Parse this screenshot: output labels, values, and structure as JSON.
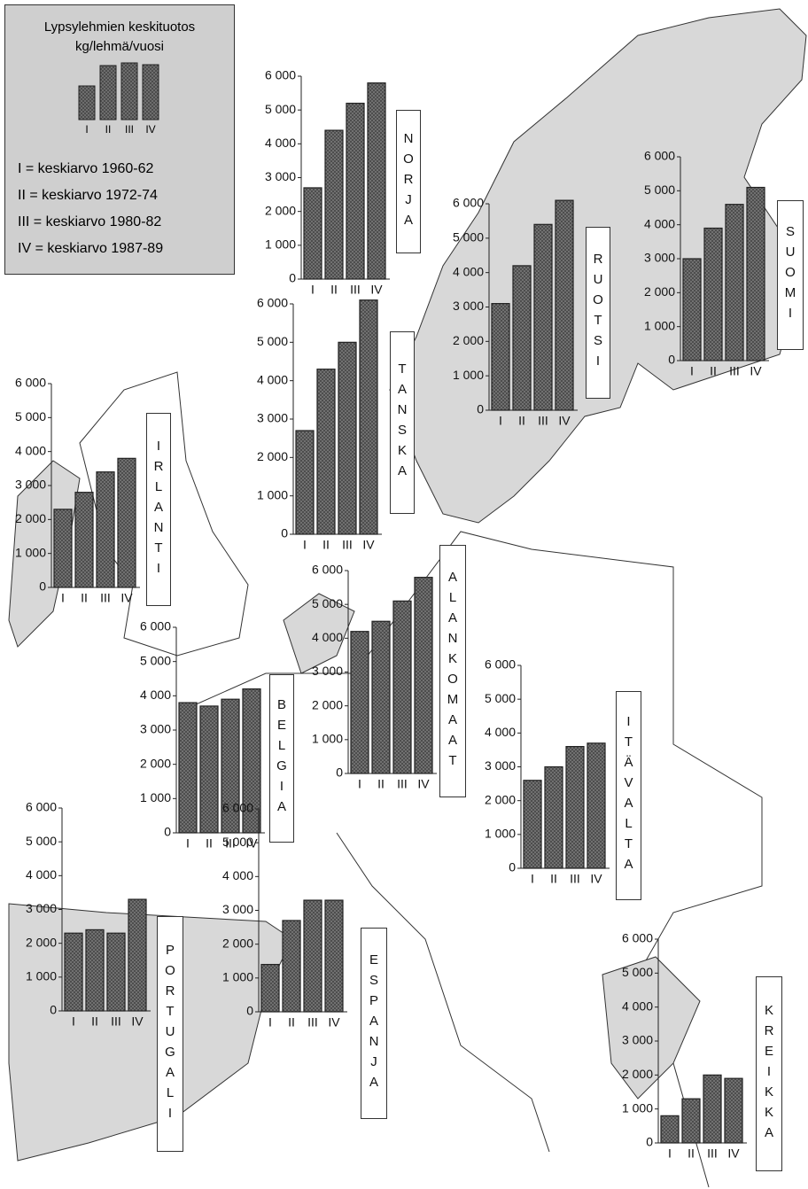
{
  "legend": {
    "title": "Lypsylehmien keskituotos",
    "subtitle": "kg/lehmä/vuosi",
    "categories": [
      "I",
      "II",
      "III",
      "IV"
    ],
    "items": [
      "I = keskiarvo 1960-62",
      "II = keskiarvo 1972-74",
      "III = keskiarvo 1980-82",
      "IV = keskiarvo 1987-89"
    ]
  },
  "chart_data": [
    {
      "type": "bar",
      "title": "NORJA",
      "categories": [
        "I",
        "II",
        "III",
        "IV"
      ],
      "values": [
        2700,
        4400,
        5200,
        5800
      ],
      "color": "#7a7a7a",
      "ylim": [
        0,
        6000
      ],
      "yticks": [
        0,
        {
          "value": 1000,
          "label": "1 000"
        },
        {
          "value": 2000,
          "label": "2 000"
        },
        {
          "value": 3000,
          "label": "3 000"
        },
        {
          "value": 4000,
          "label": "4 000"
        },
        {
          "value": 5000,
          "label": "5 000"
        },
        {
          "value": 6000,
          "label": "6 000"
        }
      ]
    },
    {
      "type": "bar",
      "title": "RUOTSI",
      "categories": [
        "I",
        "II",
        "III",
        "IV"
      ],
      "values": [
        3100,
        4200,
        5400,
        6100
      ],
      "color": "#7a7a7a",
      "ylim": [
        0,
        6000
      ],
      "yticks": [
        0,
        {
          "value": 1000,
          "label": "1 000"
        },
        {
          "value": 2000,
          "label": "2 000"
        },
        {
          "value": 3000,
          "label": "3 000"
        },
        {
          "value": 4000,
          "label": "4 000"
        },
        {
          "value": 5000,
          "label": "5 000"
        },
        {
          "value": 6000,
          "label": "6 000"
        }
      ]
    },
    {
      "type": "bar",
      "title": "SUOMI",
      "categories": [
        "I",
        "II",
        "III",
        "IV"
      ],
      "values": [
        3000,
        3900,
        4600,
        5100
      ],
      "color": "#7a7a7a",
      "ylim": [
        0,
        6000
      ],
      "yticks": [
        0,
        {
          "value": 1000,
          "label": "1 000"
        },
        {
          "value": 2000,
          "label": "2 000"
        },
        {
          "value": 3000,
          "label": "3 000"
        },
        {
          "value": 4000,
          "label": "4 000"
        },
        {
          "value": 5000,
          "label": "5 000"
        },
        {
          "value": 6000,
          "label": "6 000"
        }
      ]
    },
    {
      "type": "bar",
      "title": "TANSKA",
      "categories": [
        "I",
        "II",
        "III",
        "IV"
      ],
      "values": [
        2700,
        4300,
        5000,
        6100
      ],
      "color": "#7a7a7a",
      "ylim": [
        0,
        6000
      ],
      "yticks": [
        0,
        {
          "value": 1000,
          "label": "1 000"
        },
        {
          "value": 2000,
          "label": "2 000"
        },
        {
          "value": 3000,
          "label": "3 000"
        },
        {
          "value": 4000,
          "label": "4 000"
        },
        {
          "value": 5000,
          "label": "5 000"
        },
        {
          "value": 6000,
          "label": "6 000"
        }
      ]
    },
    {
      "type": "bar",
      "title": "IRLANTI",
      "categories": [
        "I",
        "II",
        "III",
        "IV"
      ],
      "values": [
        2300,
        2800,
        3400,
        3800
      ],
      "color": "#7a7a7a",
      "ylim": [
        0,
        6000
      ],
      "yticks": [
        0,
        {
          "value": 1000,
          "label": "1 000"
        },
        {
          "value": 2000,
          "label": "2 000"
        },
        {
          "value": 3000,
          "label": "3 000"
        },
        {
          "value": 4000,
          "label": "4 000"
        },
        {
          "value": 5000,
          "label": "5 000"
        },
        {
          "value": 6000,
          "label": "6 000"
        }
      ]
    },
    {
      "type": "bar",
      "title": "BELGIA",
      "categories": [
        "I",
        "II",
        "III",
        "IV"
      ],
      "values": [
        3800,
        3700,
        3900,
        4200
      ],
      "color": "#7a7a7a",
      "ylim": [
        0,
        6000
      ],
      "yticks": [
        0,
        {
          "value": 1000,
          "label": "1 000"
        },
        {
          "value": 2000,
          "label": "2 000"
        },
        {
          "value": 3000,
          "label": "3 000"
        },
        {
          "value": 4000,
          "label": "4 000"
        },
        {
          "value": 5000,
          "label": "5 000"
        },
        {
          "value": 6000,
          "label": "6 000"
        }
      ]
    },
    {
      "type": "bar",
      "title": "ALANKOMAAT",
      "categories": [
        "I",
        "II",
        "III",
        "IV"
      ],
      "values": [
        4200,
        4500,
        5100,
        5800
      ],
      "color": "#7a7a7a",
      "ylim": [
        0,
        6000
      ],
      "yticks": [
        0,
        {
          "value": 1000,
          "label": "1 000"
        },
        {
          "value": 2000,
          "label": "2 000"
        },
        {
          "value": 3000,
          "label": "3 000"
        },
        {
          "value": 4000,
          "label": "4 000"
        },
        {
          "value": 5000,
          "label": "5 000"
        },
        {
          "value": 6000,
          "label": "6 000"
        }
      ]
    },
    {
      "type": "bar",
      "title": "ITÄVALTA",
      "categories": [
        "I",
        "II",
        "III",
        "IV"
      ],
      "values": [
        2600,
        3000,
        3600,
        3700
      ],
      "color": "#7a7a7a",
      "ylim": [
        0,
        6000
      ],
      "yticks": [
        0,
        {
          "value": 1000,
          "label": "1 000"
        },
        {
          "value": 2000,
          "label": "2 000"
        },
        {
          "value": 3000,
          "label": "3 000"
        },
        {
          "value": 4000,
          "label": "4 000"
        },
        {
          "value": 5000,
          "label": "5 000"
        },
        {
          "value": 6000,
          "label": "6 000"
        }
      ]
    },
    {
      "type": "bar",
      "title": "PORTUGALI",
      "categories": [
        "I",
        "II",
        "III",
        "IV"
      ],
      "values": [
        2300,
        2400,
        2300,
        3300
      ],
      "color": "#7a7a7a",
      "ylim": [
        0,
        6000
      ],
      "yticks": [
        0,
        {
          "value": 1000,
          "label": "1 000"
        },
        {
          "value": 2000,
          "label": "2 000"
        },
        {
          "value": 3000,
          "label": "3 000"
        },
        {
          "value": 4000,
          "label": "4 000"
        },
        {
          "value": 5000,
          "label": "5 000"
        },
        {
          "value": 6000,
          "label": "6 000"
        }
      ]
    },
    {
      "type": "bar",
      "title": "ESPANJA",
      "categories": [
        "I",
        "II",
        "III",
        "IV"
      ],
      "values": [
        1400,
        2700,
        3300,
        3300
      ],
      "color": "#7a7a7a",
      "ylim": [
        0,
        6000
      ],
      "yticks": [
        0,
        {
          "value": 1000,
          "label": "1 000"
        },
        {
          "value": 2000,
          "label": "2 000"
        },
        {
          "value": 3000,
          "label": "3 000"
        },
        {
          "value": 4000,
          "label": "4 000"
        },
        {
          "value": 5000,
          "label": "5 000"
        },
        {
          "value": 6000,
          "label": "6 000"
        }
      ]
    },
    {
      "type": "bar",
      "title": "KREIKKA",
      "categories": [
        "I",
        "II",
        "III",
        "IV"
      ],
      "values": [
        800,
        1300,
        2000,
        1900
      ],
      "color": "#7a7a7a",
      "ylim": [
        0,
        6000
      ],
      "yticks": [
        0,
        {
          "value": 1000,
          "label": "1 000"
        },
        {
          "value": 2000,
          "label": "2 000"
        },
        {
          "value": 3000,
          "label": "3 000"
        },
        {
          "value": 4000,
          "label": "4 000"
        },
        {
          "value": 5000,
          "label": "5 000"
        },
        {
          "value": 6000,
          "label": "6 000"
        }
      ]
    }
  ]
}
